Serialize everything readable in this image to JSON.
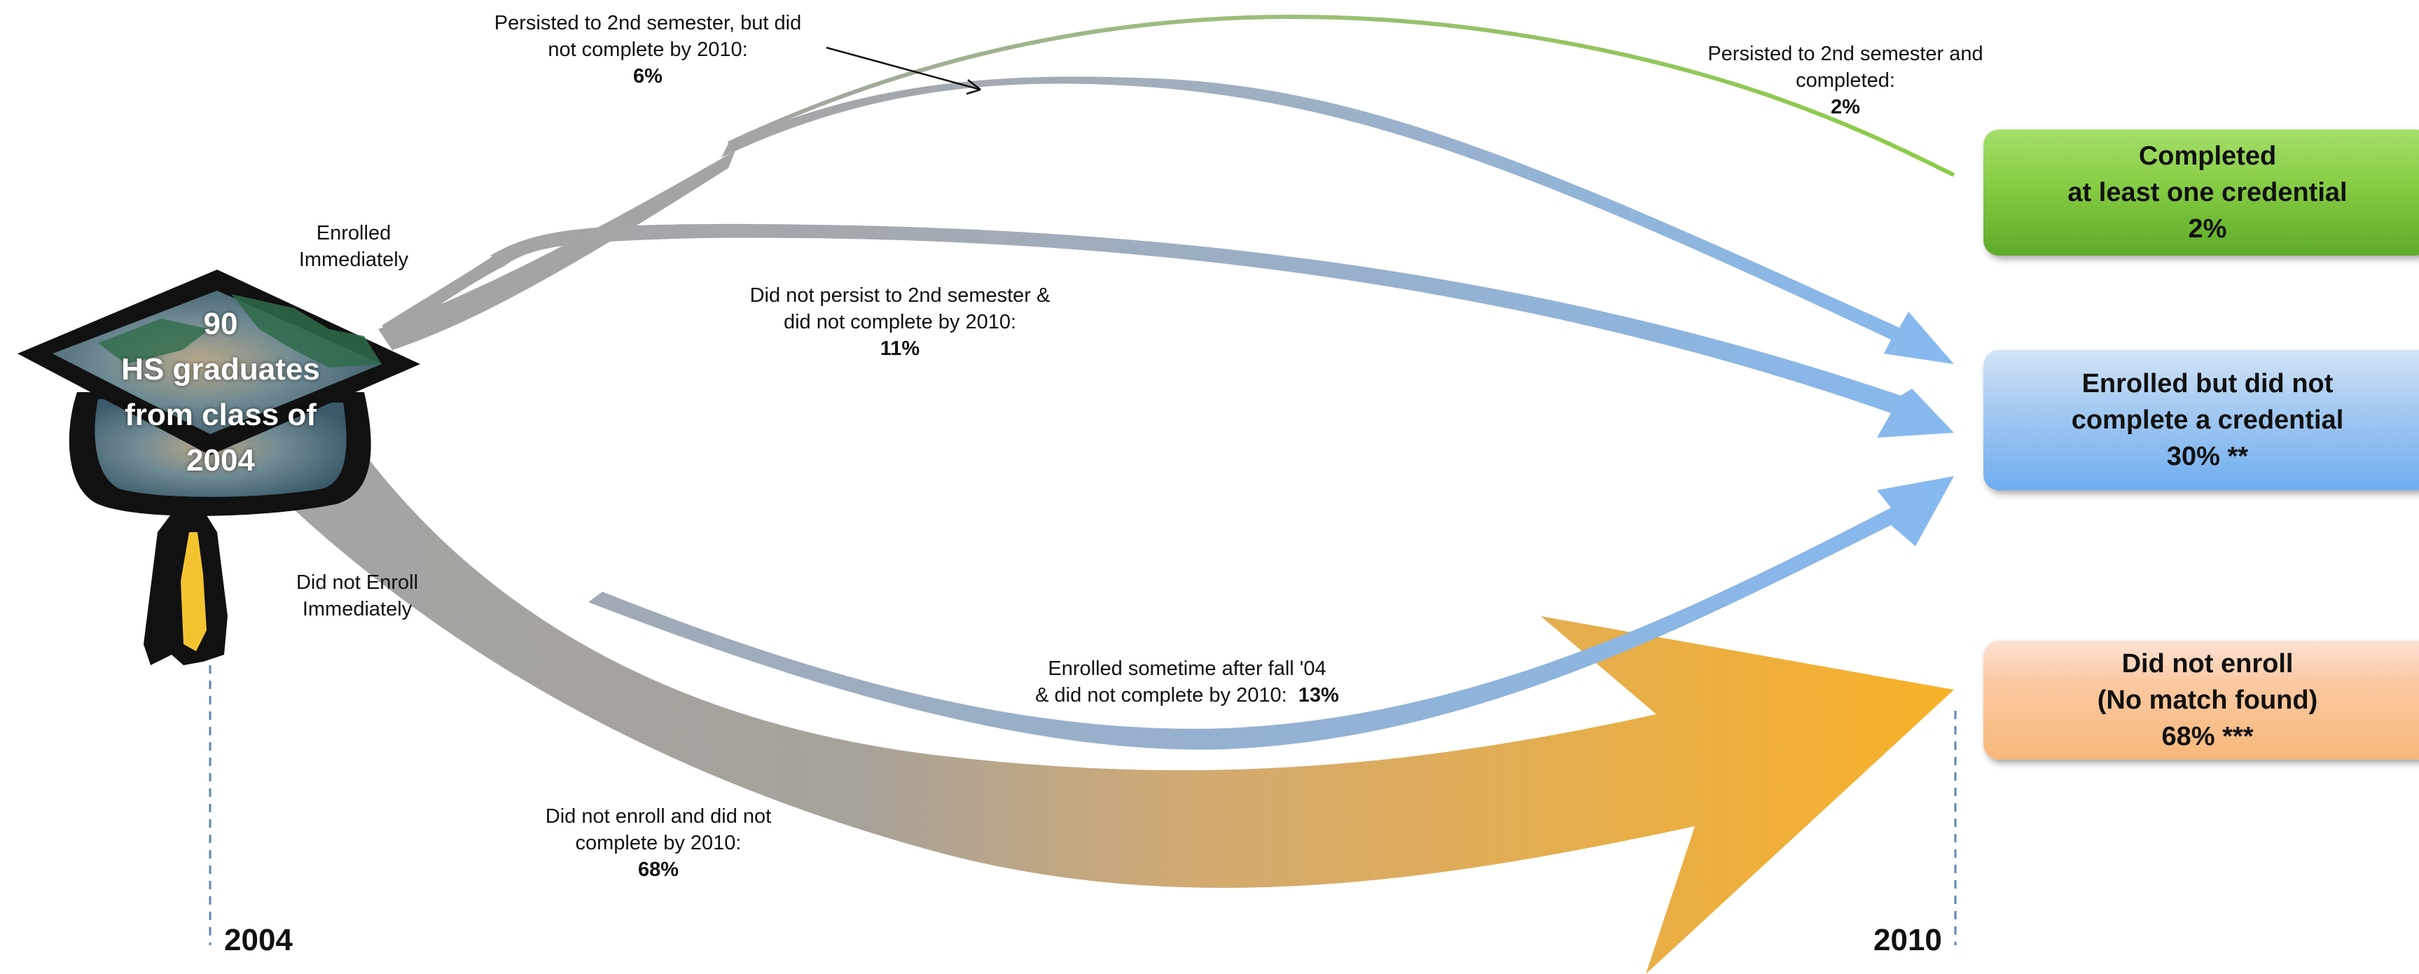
{
  "start": {
    "lines": [
      "90",
      "HS graduates",
      "from class of",
      "2004"
    ],
    "year": "2004"
  },
  "end_year": "2010",
  "branches": {
    "enrolled": [
      "Enrolled",
      "Immediately"
    ],
    "not_enrolled": [
      "Did not Enroll",
      "Immediately"
    ]
  },
  "flows": {
    "persist_complete": {
      "lines": [
        "Persisted to 2nd semester and",
        "completed:"
      ],
      "pct": "2%"
    },
    "persist_not_complete": {
      "lines": [
        "Persisted to 2nd semester, but did",
        "not complete by 2010:"
      ],
      "pct": "6%"
    },
    "not_persist": {
      "lines": [
        "Did not persist to 2nd semester &",
        "did not complete by 2010:"
      ],
      "pct": "11%"
    },
    "enrolled_later": {
      "line1": "Enrolled sometime after fall '04",
      "line2": "& did not complete by 2010:",
      "pct": "13%"
    },
    "not_enroll": {
      "lines": [
        "Did not enroll and did not",
        "complete by 2010:"
      ],
      "pct": "68%"
    }
  },
  "outcomes": {
    "completed": {
      "lines": [
        "Completed",
        "at least one credential",
        "2%"
      ],
      "color": "#7dc142"
    },
    "enrolled_no_credential": {
      "lines": [
        "Enrolled but did not",
        "complete a  credential",
        "30% **"
      ],
      "color": "#8fc0f2"
    },
    "did_not_enroll": {
      "lines": [
        "Did not enroll",
        "(No match found)",
        "68% ***"
      ],
      "color": "#f9c08e"
    }
  },
  "colors": {
    "gray": "#a4a4a4",
    "blue": "#88b8ec",
    "orange": "#f8b128",
    "green": "#8ccc46"
  }
}
